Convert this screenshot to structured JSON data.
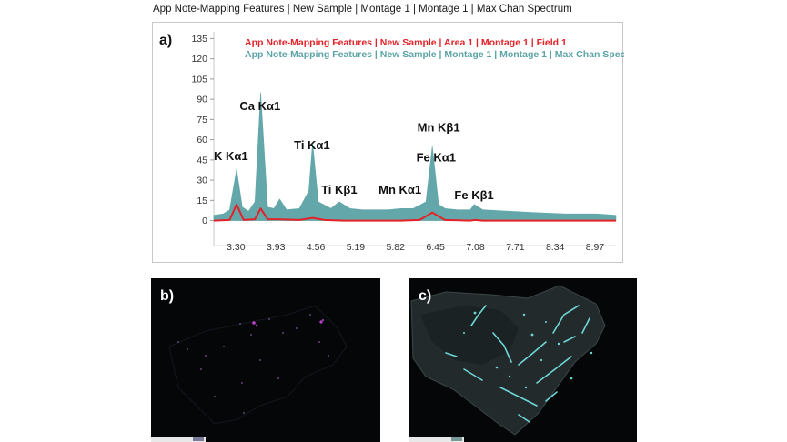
{
  "window": {
    "title": "App Note-Mapping Features | New Sample | Montage 1 | Montage 1 |  Max Chan Spectrum"
  },
  "panels": {
    "a": "a)",
    "b": "b)",
    "c": "c)"
  },
  "colors": {
    "area_series": "#e32228",
    "montage_series": "#5ba3a6",
    "map_b_accent": "#c040d0",
    "map_c_accent": "#6fd6d6"
  },
  "chart_data": {
    "type": "area",
    "title": "",
    "xlabel": "",
    "ylabel": "",
    "xlim": [
      2.95,
      9.3
    ],
    "ylim": [
      -5,
      140
    ],
    "x_ticks": [
      "3.30",
      "3.93",
      "4.56",
      "5.19",
      "5.82",
      "6.45",
      "7.08",
      "7.71",
      "8.34",
      "8.97"
    ],
    "y_ticks": [
      "0",
      "15",
      "30",
      "45",
      "60",
      "75",
      "90",
      "105",
      "120",
      "135"
    ],
    "legend_placement": "top",
    "series": [
      {
        "name": "App Note-Mapping Features | New Sample | Area 1 | Montage 1 | Field 1",
        "color": "#e32228",
        "style": "line",
        "x": [
          2.95,
          3.2,
          3.31,
          3.42,
          3.6,
          3.69,
          3.8,
          3.95,
          4.3,
          4.51,
          4.7,
          5.0,
          5.5,
          5.9,
          6.2,
          6.4,
          6.6,
          7.0,
          7.07,
          7.2,
          8.0,
          9.3
        ],
        "values": [
          0,
          0.5,
          12,
          0.5,
          1,
          9,
          1,
          1,
          0.5,
          2,
          0.5,
          0,
          0,
          0,
          0.5,
          6,
          0.5,
          0,
          0.5,
          0,
          0,
          0
        ]
      },
      {
        "name": "App Note-Mapping Features | New Sample | Montage 1 | Montage 1 |  Max Chan Spec...",
        "color": "#5ba3a6",
        "style": "area",
        "x": [
          2.95,
          3.1,
          3.2,
          3.31,
          3.4,
          3.5,
          3.6,
          3.69,
          3.8,
          3.9,
          3.99,
          4.1,
          4.3,
          4.45,
          4.51,
          4.6,
          4.8,
          4.93,
          5.1,
          5.3,
          5.5,
          5.7,
          5.9,
          6.1,
          6.3,
          6.4,
          6.5,
          6.6,
          6.8,
          7.0,
          7.06,
          7.2,
          7.6,
          8.0,
          8.5,
          9.0,
          9.3
        ],
        "values": [
          4,
          5,
          8,
          38,
          10,
          7,
          14,
          95,
          10,
          9,
          16,
          8,
          9,
          22,
          58,
          14,
          9,
          14,
          9,
          8,
          8,
          8,
          9,
          9,
          14,
          55,
          12,
          9,
          8,
          8,
          12,
          8,
          7,
          6,
          5,
          5,
          4
        ]
      }
    ],
    "annotations": [
      {
        "text": "K  Kα1",
        "x": 3.22,
        "y": 45
      },
      {
        "text": "Ca Kα1",
        "x": 3.68,
        "y": 82
      },
      {
        "text": "Ti Kα1",
        "x": 4.5,
        "y": 53
      },
      {
        "text": "Ti Kβ1",
        "x": 4.93,
        "y": 20
      },
      {
        "text": "Mn Kα1",
        "x": 5.89,
        "y": 20
      },
      {
        "text": "Mn Kβ1",
        "x": 6.5,
        "y": 66
      },
      {
        "text": "Fe Kα1",
        "x": 6.46,
        "y": 44
      },
      {
        "text": "Fe Kβ1",
        "x": 7.06,
        "y": 16
      }
    ]
  }
}
